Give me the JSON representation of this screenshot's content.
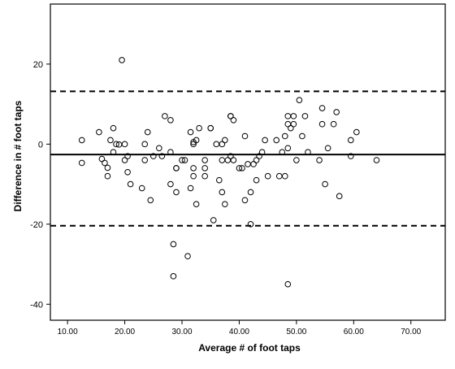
{
  "chart_data": {
    "type": "scatter",
    "title": "",
    "xlabel": "Average # of foot taps",
    "ylabel": "Difference in # foot taps",
    "xlim": [
      7,
      76
    ],
    "ylim": [
      -44,
      35
    ],
    "x_ticks": [
      10,
      20,
      30,
      40,
      50,
      60,
      70
    ],
    "x_tick_labels": [
      "10.00",
      "20.00",
      "30.00",
      "40.00",
      "50.00",
      "60.00",
      "70.00"
    ],
    "y_ticks": [
      -40,
      -20,
      0,
      20
    ],
    "y_tick_labels": [
      "-40",
      "-20",
      "0",
      "20"
    ],
    "grid": false,
    "legend": "none",
    "reference_lines": [
      {
        "y": 13.2,
        "style": "dashed"
      },
      {
        "y": -2.6,
        "style": "solid"
      },
      {
        "y": -20.4,
        "style": "dashed"
      }
    ],
    "points": [
      [
        12.5,
        1
      ],
      [
        12.5,
        -4.7
      ],
      [
        15.5,
        3
      ],
      [
        16,
        -3.7
      ],
      [
        16.5,
        -4.7
      ],
      [
        17,
        -5.9
      ],
      [
        17,
        -8
      ],
      [
        17.5,
        1
      ],
      [
        18,
        4
      ],
      [
        18,
        -2
      ],
      [
        18.5,
        0
      ],
      [
        19,
        -0.1
      ],
      [
        19.5,
        21
      ],
      [
        20,
        0
      ],
      [
        20,
        -4
      ],
      [
        20.5,
        -7
      ],
      [
        20.5,
        -3
      ],
      [
        21,
        -10
      ],
      [
        23,
        -11
      ],
      [
        23.5,
        0
      ],
      [
        23.5,
        -4
      ],
      [
        24,
        3
      ],
      [
        24.5,
        -14
      ],
      [
        25,
        -3
      ],
      [
        26,
        -1
      ],
      [
        26.5,
        -3
      ],
      [
        27,
        7
      ],
      [
        28,
        6
      ],
      [
        28,
        -2
      ],
      [
        28,
        -10
      ],
      [
        28.5,
        -25
      ],
      [
        28.5,
        -33
      ],
      [
        29,
        -6
      ],
      [
        29,
        -6
      ],
      [
        29,
        -12
      ],
      [
        30,
        -4
      ],
      [
        30.5,
        -4
      ],
      [
        31,
        -28
      ],
      [
        31.5,
        3
      ],
      [
        31.5,
        -11
      ],
      [
        32,
        0
      ],
      [
        32,
        0.5
      ],
      [
        32,
        -6
      ],
      [
        32,
        -8
      ],
      [
        32.5,
        1
      ],
      [
        32.5,
        -15
      ],
      [
        33,
        4
      ],
      [
        34,
        -6
      ],
      [
        34,
        -8
      ],
      [
        34,
        -4
      ],
      [
        35,
        4
      ],
      [
        35,
        4
      ],
      [
        35.5,
        -19
      ],
      [
        36,
        0
      ],
      [
        36.5,
        -9
      ],
      [
        37,
        0
      ],
      [
        37,
        -4
      ],
      [
        37,
        -12
      ],
      [
        37.5,
        -15
      ],
      [
        37.5,
        1
      ],
      [
        38,
        -4
      ],
      [
        38.5,
        7
      ],
      [
        38.5,
        7
      ],
      [
        38.5,
        -3
      ],
      [
        39,
        6
      ],
      [
        39,
        -4
      ],
      [
        40,
        -6
      ],
      [
        40.5,
        -6
      ],
      [
        41,
        -14
      ],
      [
        41,
        2
      ],
      [
        41.5,
        -5
      ],
      [
        42,
        -12
      ],
      [
        42,
        -20
      ],
      [
        42.5,
        -5
      ],
      [
        43,
        -9
      ],
      [
        43,
        -4
      ],
      [
        43.5,
        -3
      ],
      [
        44,
        -2
      ],
      [
        44.5,
        1
      ],
      [
        45,
        -8
      ],
      [
        46.5,
        1
      ],
      [
        47,
        -8
      ],
      [
        47.5,
        -2
      ],
      [
        48,
        -8
      ],
      [
        48,
        2
      ],
      [
        48.5,
        5
      ],
      [
        48.5,
        -1
      ],
      [
        48.5,
        7
      ],
      [
        48.5,
        -35
      ],
      [
        49,
        4
      ],
      [
        49.5,
        5
      ],
      [
        49.5,
        7
      ],
      [
        50,
        -4
      ],
      [
        50.5,
        11
      ],
      [
        51,
        2
      ],
      [
        51.5,
        7
      ],
      [
        52,
        -2
      ],
      [
        54,
        -4
      ],
      [
        54.5,
        9
      ],
      [
        54.5,
        5
      ],
      [
        55,
        -10
      ],
      [
        55.5,
        -1
      ],
      [
        56.5,
        5
      ],
      [
        57,
        8
      ],
      [
        57.5,
        -13
      ],
      [
        59.5,
        1
      ],
      [
        59.5,
        -3
      ],
      [
        60.5,
        3
      ],
      [
        64,
        -4
      ]
    ]
  }
}
